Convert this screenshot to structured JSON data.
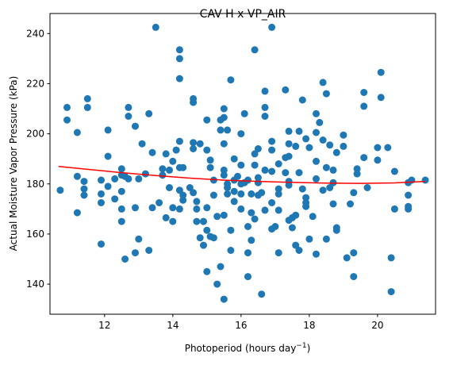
{
  "chart_data": {
    "type": "scatter",
    "title": "CAV H x VP_AIR",
    "xlabel": "Photoperiod (hours day",
    "xlabel_superscript": "−1",
    "xlabel_suffix": ")",
    "ylabel": "Actual Moisture Vapor Pressure (kPa)",
    "xlim": [
      10.4,
      21.7
    ],
    "ylim": [
      128,
      248
    ],
    "xticks": [
      12,
      14,
      16,
      18,
      20
    ],
    "yticks": [
      140,
      160,
      180,
      200,
      220,
      240
    ],
    "grid": false,
    "colors": {
      "points": "#1f77b4",
      "trend": "#ff0000"
    },
    "series": [
      {
        "type": "scatter",
        "points": [
          [
            10.7,
            177.5
          ],
          [
            10.9,
            210.5
          ],
          [
            10.9,
            205.5
          ],
          [
            11.2,
            200.5
          ],
          [
            11.2,
            183.0
          ],
          [
            11.2,
            168.5
          ],
          [
            11.5,
            214.0
          ],
          [
            11.5,
            210.5
          ],
          [
            11.4,
            181.0
          ],
          [
            11.4,
            178.0
          ],
          [
            11.4,
            175.5
          ],
          [
            11.9,
            181.5
          ],
          [
            11.9,
            176.0
          ],
          [
            11.9,
            172.5
          ],
          [
            11.9,
            156.0
          ],
          [
            12.1,
            201.5
          ],
          [
            12.1,
            191.0
          ],
          [
            12.1,
            179.0
          ],
          [
            12.3,
            182.0
          ],
          [
            12.3,
            174.0
          ],
          [
            12.5,
            186.0
          ],
          [
            12.5,
            183.5
          ],
          [
            12.5,
            177.0
          ],
          [
            12.5,
            170.0
          ],
          [
            12.5,
            165.0
          ],
          [
            12.6,
            183.0
          ],
          [
            12.6,
            150.0
          ],
          [
            12.7,
            210.5
          ],
          [
            12.7,
            207.0
          ],
          [
            12.7,
            182.0
          ],
          [
            12.9,
            203.0
          ],
          [
            12.9,
            170.5
          ],
          [
            12.9,
            152.5
          ],
          [
            13.0,
            158.0
          ],
          [
            13.0,
            182.0
          ],
          [
            13.1,
            196.0
          ],
          [
            13.2,
            184.0
          ],
          [
            13.3,
            208.0
          ],
          [
            13.3,
            153.5
          ],
          [
            13.4,
            170.5
          ],
          [
            13.4,
            192.5
          ],
          [
            13.5,
            242.5
          ],
          [
            13.6,
            172.5
          ],
          [
            13.7,
            186.0
          ],
          [
            13.7,
            183.5
          ],
          [
            13.8,
            166.5
          ],
          [
            13.8,
            192.0
          ],
          [
            13.9,
            185.5
          ],
          [
            13.9,
            178.5
          ],
          [
            14.0,
            189.0
          ],
          [
            14.0,
            170.5
          ],
          [
            14.0,
            165.0
          ],
          [
            14.1,
            193.5
          ],
          [
            14.2,
            233.5
          ],
          [
            14.2,
            230.0
          ],
          [
            14.2,
            222.0
          ],
          [
            14.2,
            197.0
          ],
          [
            14.2,
            186.5
          ],
          [
            14.2,
            177.5
          ],
          [
            14.2,
            170.0
          ],
          [
            14.3,
            186.5
          ],
          [
            14.3,
            175.5
          ],
          [
            14.3,
            173.5
          ],
          [
            14.5,
            178.5
          ],
          [
            14.6,
            196.5
          ],
          [
            14.6,
            194.0
          ],
          [
            14.6,
            214.0
          ],
          [
            14.6,
            212.5
          ],
          [
            14.6,
            176.5
          ],
          [
            14.7,
            173.0
          ],
          [
            14.7,
            170.0
          ],
          [
            14.7,
            165.0
          ],
          [
            14.8,
            196.0
          ],
          [
            14.8,
            158.5
          ],
          [
            14.9,
            165.0
          ],
          [
            14.9,
            155.5
          ],
          [
            15.0,
            205.5
          ],
          [
            15.0,
            193.5
          ],
          [
            15.0,
            170.5
          ],
          [
            15.0,
            161.5
          ],
          [
            15.0,
            145.0
          ],
          [
            15.1,
            159.0
          ],
          [
            15.1,
            186.5
          ],
          [
            15.1,
            189.5
          ],
          [
            15.2,
            181.5
          ],
          [
            15.2,
            175.5
          ],
          [
            15.2,
            158.5
          ],
          [
            15.3,
            167.0
          ],
          [
            15.3,
            140.0
          ],
          [
            15.4,
            201.5
          ],
          [
            15.4,
            205.5
          ],
          [
            15.4,
            147.0
          ],
          [
            15.5,
            210.0
          ],
          [
            15.5,
            206.5
          ],
          [
            15.5,
            196.0
          ],
          [
            15.5,
            185.5
          ],
          [
            15.5,
            183.5
          ],
          [
            15.5,
            134.0
          ],
          [
            15.5,
            167.5
          ],
          [
            15.6,
            201.5
          ],
          [
            15.6,
            180.0
          ],
          [
            15.6,
            178.5
          ],
          [
            15.6,
            176.0
          ],
          [
            15.7,
            161.5
          ],
          [
            15.7,
            153.5
          ],
          [
            15.7,
            221.5
          ],
          [
            15.8,
            190.0
          ],
          [
            15.8,
            181.5
          ],
          [
            15.8,
            177.0
          ],
          [
            15.8,
            173.0
          ],
          [
            15.9,
            183.0
          ],
          [
            16.0,
            187.5
          ],
          [
            16.0,
            200.0
          ],
          [
            16.0,
            180.0
          ],
          [
            16.0,
            176.0
          ],
          [
            16.0,
            170.0
          ],
          [
            16.1,
            180.5
          ],
          [
            16.1,
            208.0
          ],
          [
            16.2,
            181.5
          ],
          [
            16.2,
            143.0
          ],
          [
            16.2,
            152.5
          ],
          [
            16.2,
            163.0
          ],
          [
            16.3,
            176.0
          ],
          [
            16.3,
            168.5
          ],
          [
            16.3,
            157.5
          ],
          [
            16.4,
            233.5
          ],
          [
            16.4,
            187.5
          ],
          [
            16.4,
            166.0
          ],
          [
            16.4,
            192.0
          ],
          [
            16.5,
            194.0
          ],
          [
            16.5,
            182.5
          ],
          [
            16.5,
            180.5
          ],
          [
            16.5,
            175.5
          ],
          [
            16.6,
            176.5
          ],
          [
            16.6,
            136.0
          ],
          [
            16.7,
            210.5
          ],
          [
            16.7,
            207.0
          ],
          [
            16.7,
            217.0
          ],
          [
            16.7,
            185.5
          ],
          [
            16.7,
            169.5
          ],
          [
            16.9,
            242.5
          ],
          [
            16.9,
            197.0
          ],
          [
            16.9,
            193.5
          ],
          [
            16.9,
            185.0
          ],
          [
            16.9,
            172.5
          ],
          [
            16.9,
            162.0
          ],
          [
            17.0,
            163.0
          ],
          [
            17.1,
            188.0
          ],
          [
            17.1,
            178.0
          ],
          [
            17.1,
            176.0
          ],
          [
            17.1,
            169.5
          ],
          [
            17.1,
            152.5
          ],
          [
            17.3,
            217.5
          ],
          [
            17.3,
            190.5
          ],
          [
            17.3,
            184.5
          ],
          [
            17.4,
            201.0
          ],
          [
            17.4,
            196.0
          ],
          [
            17.4,
            191.0
          ],
          [
            17.4,
            181.0
          ],
          [
            17.4,
            179.5
          ],
          [
            17.4,
            165.5
          ],
          [
            17.5,
            162.5
          ],
          [
            17.5,
            166.5
          ],
          [
            17.6,
            195.0
          ],
          [
            17.6,
            167.5
          ],
          [
            17.6,
            155.5
          ],
          [
            17.7,
            153.5
          ],
          [
            17.7,
            184.5
          ],
          [
            17.7,
            201.0
          ],
          [
            17.8,
            213.5
          ],
          [
            17.8,
            178.0
          ],
          [
            17.9,
            198.0
          ],
          [
            17.9,
            174.5
          ],
          [
            17.9,
            172.5
          ],
          [
            17.9,
            171.0
          ],
          [
            18.0,
            194.5
          ],
          [
            18.0,
            158.0
          ],
          [
            18.1,
            167.0
          ],
          [
            18.2,
            200.5
          ],
          [
            18.2,
            189.0
          ],
          [
            18.2,
            208.0
          ],
          [
            18.2,
            182.0
          ],
          [
            18.2,
            152.0
          ],
          [
            18.3,
            204.5
          ],
          [
            18.4,
            220.5
          ],
          [
            18.4,
            197.5
          ],
          [
            18.4,
            177.5
          ],
          [
            18.5,
            216.0
          ],
          [
            18.5,
            186.5
          ],
          [
            18.5,
            158.0
          ],
          [
            18.6,
            195.5
          ],
          [
            18.6,
            178.5
          ],
          [
            18.7,
            180.5
          ],
          [
            18.7,
            172.0
          ],
          [
            18.7,
            185.5
          ],
          [
            18.8,
            192.5
          ],
          [
            18.8,
            162.5
          ],
          [
            18.8,
            161.5
          ],
          [
            19.0,
            199.5
          ],
          [
            19.0,
            195.0
          ],
          [
            19.1,
            150.5
          ],
          [
            19.2,
            172.0
          ],
          [
            19.3,
            176.5
          ],
          [
            19.3,
            152.5
          ],
          [
            19.3,
            143.0
          ],
          [
            19.4,
            186.0
          ],
          [
            19.4,
            184.0
          ],
          [
            19.6,
            190.5
          ],
          [
            19.6,
            211.0
          ],
          [
            19.6,
            216.5
          ],
          [
            19.7,
            178.5
          ],
          [
            20.0,
            194.5
          ],
          [
            20.0,
            189.5
          ],
          [
            20.1,
            214.5
          ],
          [
            20.1,
            224.5
          ],
          [
            20.3,
            194.5
          ],
          [
            20.4,
            150.5
          ],
          [
            20.4,
            137.0
          ],
          [
            20.5,
            170.0
          ],
          [
            20.5,
            185.0
          ],
          [
            20.9,
            180.5
          ],
          [
            20.9,
            175.5
          ],
          [
            20.9,
            171.0
          ],
          [
            20.9,
            170.0
          ],
          [
            21.0,
            181.5
          ],
          [
            21.4,
            181.5
          ]
        ]
      },
      {
        "type": "line",
        "points": [
          [
            10.65,
            187.0
          ],
          [
            11.5,
            185.8
          ],
          [
            12.5,
            184.5
          ],
          [
            13.5,
            183.3
          ],
          [
            14.5,
            182.3
          ],
          [
            15.5,
            181.5
          ],
          [
            16.5,
            181.0
          ],
          [
            17.5,
            180.6
          ],
          [
            18.5,
            180.3
          ],
          [
            19.5,
            180.2
          ],
          [
            20.5,
            180.4
          ],
          [
            21.4,
            181.0
          ]
        ]
      }
    ]
  }
}
